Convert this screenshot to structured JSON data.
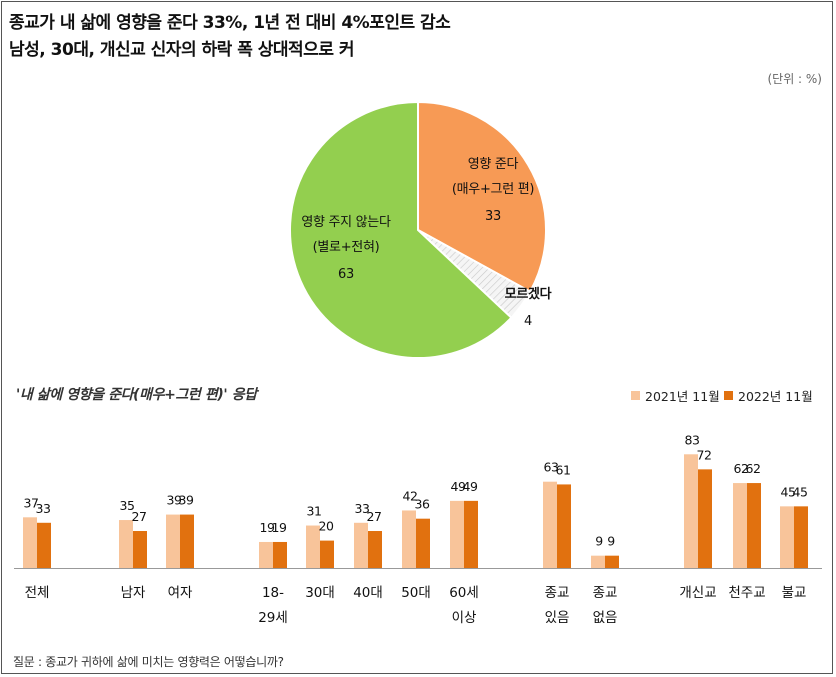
{
  "title_line1": "종교가 내 삶에 영향을 준다 33%, 1년 전 대비 4%포인트 감소",
  "title_line2": "남성, 30대, 개신교 신자의 하락 폭 상대적으로 커",
  "unit": "(단위 : %)",
  "footer": "질문 : 종교가 귀하에 삶에 미치는 영향력은 어떻습니까?",
  "colors": {
    "green": "#93cf4f",
    "orange": "#f79a55",
    "dontknow": "#eeeeee",
    "light": "#f8c49a",
    "dark": "#e1710f"
  },
  "chart_data": [
    {
      "type": "pie",
      "slices": [
        {
          "label_line1": "영향 준다",
          "label_line2": "(매우+그런 편)",
          "value": 33,
          "color": "#f79a55"
        },
        {
          "label_line1": "모르겠다",
          "label_line2": "",
          "value": 4,
          "color": "#eeeeee"
        },
        {
          "label_line1": "영향 주지 않는다",
          "label_line2": "(별로+전혀)",
          "value": 63,
          "color": "#93cf4f"
        }
      ]
    },
    {
      "type": "bar",
      "title": "'내 삶에 영향을 준다(매우+그런 편)' 응답",
      "legend": [
        "2021년 11월",
        "2022년 11월"
      ],
      "categories": [
        {
          "line1": "전체",
          "line2": ""
        },
        {
          "line1": "남자",
          "line2": ""
        },
        {
          "line1": "여자",
          "line2": ""
        },
        {
          "line1": "18-",
          "line2": "29세"
        },
        {
          "line1": "30대",
          "line2": ""
        },
        {
          "line1": "40대",
          "line2": ""
        },
        {
          "line1": "50대",
          "line2": ""
        },
        {
          "line1": "60세",
          "line2": "이상"
        },
        {
          "line1": "종교",
          "line2": "있음"
        },
        {
          "line1": "종교",
          "line2": "없음"
        },
        {
          "line1": "개신교",
          "line2": ""
        },
        {
          "line1": "천주교",
          "line2": ""
        },
        {
          "line1": "불교",
          "line2": ""
        }
      ],
      "series": [
        {
          "name": "2021년 11월",
          "values": [
            37,
            35,
            39,
            19,
            31,
            33,
            42,
            49,
            63,
            9,
            83,
            62,
            45
          ]
        },
        {
          "name": "2022년 11월",
          "values": [
            33,
            27,
            39,
            19,
            20,
            27,
            36,
            49,
            61,
            9,
            72,
            62,
            45
          ]
        }
      ]
    }
  ]
}
